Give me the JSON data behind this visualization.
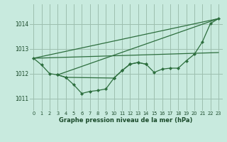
{
  "bg_color": "#c8eade",
  "grid_color": "#9dbfaf",
  "line_color": "#2d6e3e",
  "text_color": "#1a4a2a",
  "xlabel": "Graphe pression niveau de la mer (hPa)",
  "xlim": [
    -0.5,
    23.5
  ],
  "ylim": [
    1010.5,
    1014.8
  ],
  "yticks": [
    1011,
    1012,
    1013,
    1014
  ],
  "xticks": [
    0,
    1,
    2,
    3,
    4,
    5,
    6,
    7,
    8,
    9,
    10,
    11,
    12,
    13,
    14,
    15,
    16,
    17,
    18,
    19,
    20,
    21,
    22,
    23
  ],
  "s1_x": [
    0,
    1,
    2,
    3,
    4,
    5,
    6,
    7,
    8,
    9,
    10,
    11,
    12,
    13,
    14,
    15,
    16,
    17,
    18,
    19,
    20,
    21,
    22,
    23
  ],
  "s1_y": [
    1012.62,
    1012.35,
    1012.0,
    1011.95,
    1011.85,
    1011.55,
    1011.2,
    1011.28,
    1011.32,
    1011.38,
    1011.82,
    1012.12,
    1012.38,
    1012.45,
    1012.38,
    1012.05,
    1012.18,
    1012.22,
    1012.22,
    1012.52,
    1012.78,
    1013.28,
    1014.02,
    1014.22
  ],
  "s2_x": [
    3,
    4,
    10,
    11,
    12,
    13,
    14
  ],
  "s2_y": [
    1011.95,
    1011.85,
    1011.82,
    1012.12,
    1012.38,
    1012.45,
    1012.38
  ],
  "line1_x": [
    0,
    23
  ],
  "line1_y": [
    1012.62,
    1014.22
  ],
  "line2_x": [
    3,
    23
  ],
  "line2_y": [
    1011.95,
    1014.22
  ],
  "line3_x": [
    0,
    23
  ],
  "line3_y": [
    1012.62,
    1012.85
  ]
}
